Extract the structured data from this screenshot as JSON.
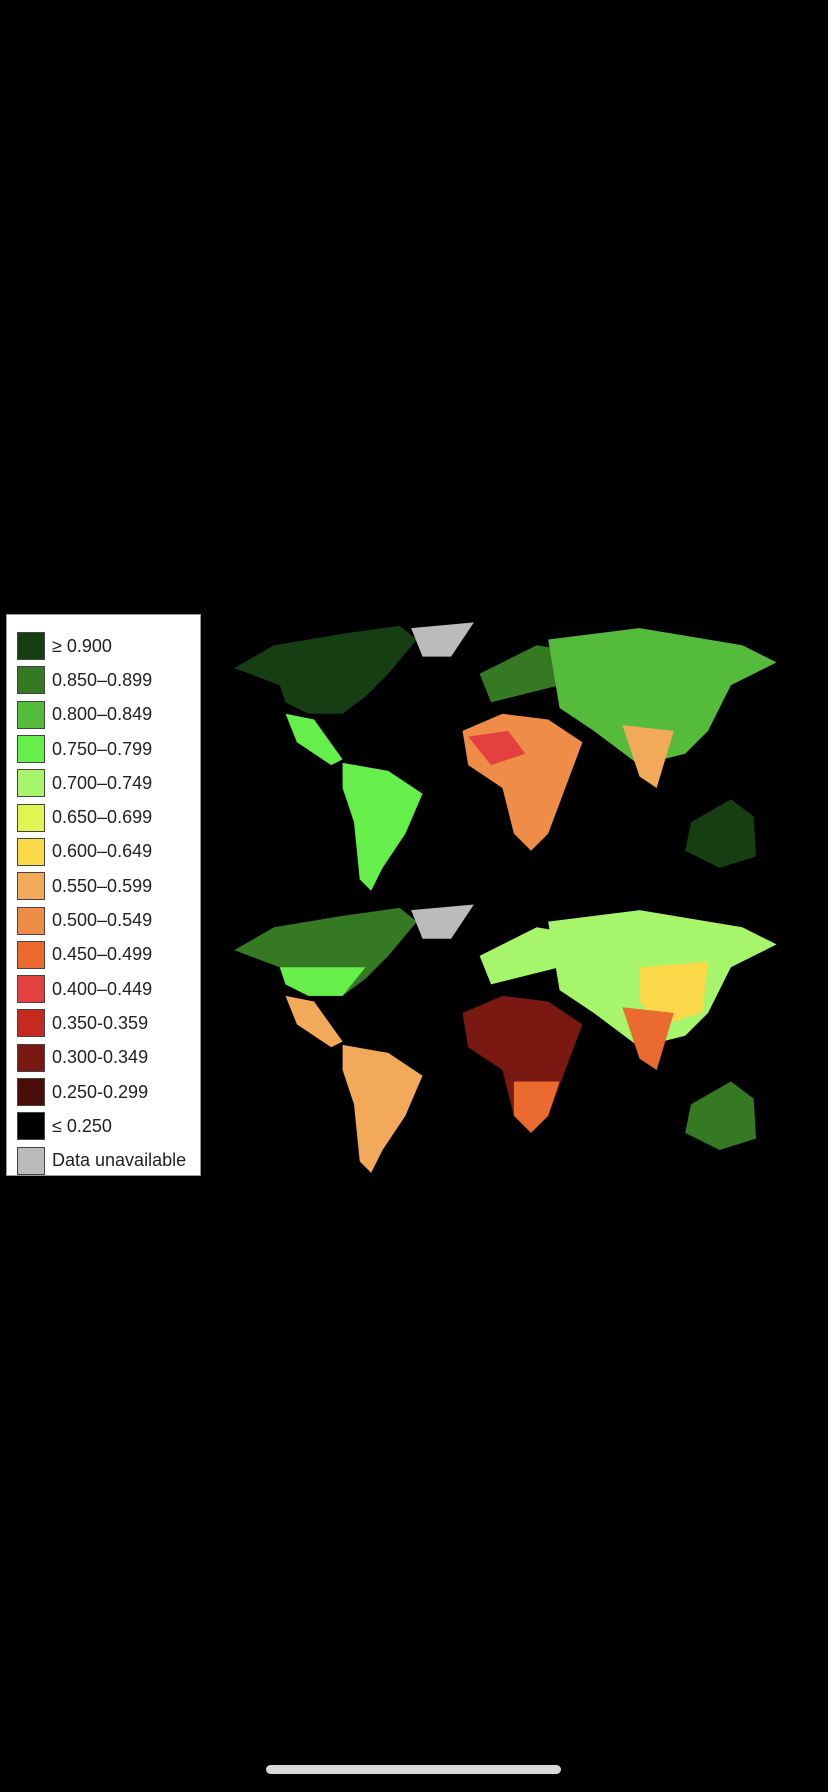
{
  "legend": {
    "items": [
      {
        "label": "≥ 0.900",
        "color": "#173d12"
      },
      {
        "label": "0.850–0.899",
        "color": "#357a22"
      },
      {
        "label": "0.800–0.849",
        "color": "#55bb3a"
      },
      {
        "label": "0.750–0.799",
        "color": "#66ee4a"
      },
      {
        "label": "0.700–0.749",
        "color": "#a6f56a"
      },
      {
        "label": "0.650–0.699",
        "color": "#dff552"
      },
      {
        "label": "0.600–0.649",
        "color": "#fbd84a"
      },
      {
        "label": "0.550–0.599",
        "color": "#f2aa5a"
      },
      {
        "label": "0.500–0.549",
        "color": "#ee8c48"
      },
      {
        "label": "0.450–0.499",
        "color": "#ea6a30"
      },
      {
        "label": "0.400–0.449",
        "color": "#e44040"
      },
      {
        "label": "0.350-0.359",
        "color": "#c42a20"
      },
      {
        "label": "0.300-0.349",
        "color": "#7a1812"
      },
      {
        "label": "0.250-0.299",
        "color": "#4a0e0a"
      },
      {
        "label": "≤ 0.250",
        "color": "#000000"
      },
      {
        "label": "Data unavailable",
        "color": "#bbbbbb"
      }
    ]
  }
}
